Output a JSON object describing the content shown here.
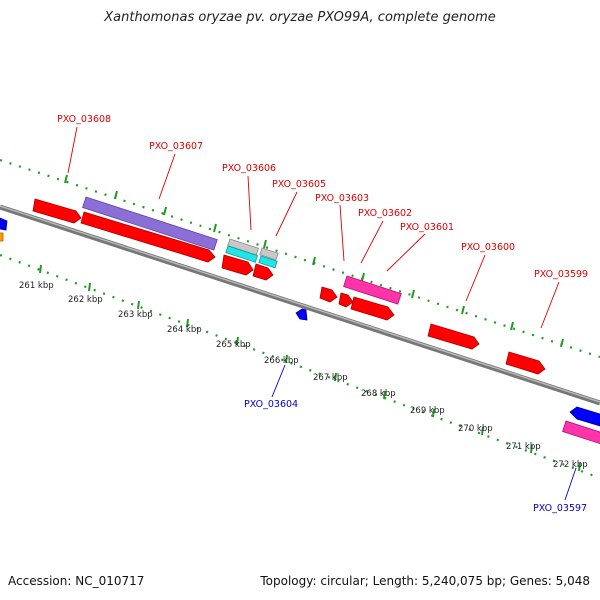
{
  "title": "Xanthomonas oryzae pv. oryzae PXO99A, complete genome",
  "footer": {
    "accession": "Accession: NC_010717",
    "summary": "Topology: circular; Length: 5,240,075 bp; Genes: 5,048"
  },
  "colors": {
    "forward_gene": "#ff0000",
    "reverse_gene": "#0000ff",
    "forward_label": "#dd0000",
    "reverse_label": "#0000cc",
    "cog_purple": "#8c6fd6",
    "cog_pink": "#ff33aa",
    "cog_cyan": "#22e5e5",
    "cog_gray": "#bbbbbb",
    "cog_orange": "#ff9900",
    "ticks": "#229922",
    "backbone": "#888888"
  },
  "scale_labels": [
    "261 kbp",
    "262 kbp",
    "263 kbp",
    "264 kbp",
    "265 kbp",
    "266 kbp",
    "267 kbp",
    "268 kbp",
    "269 kbp",
    "270 kbp",
    "271 kbp",
    "272 kbp"
  ],
  "gene_labels": [
    "PXO_03608",
    "PXO_03607",
    "PXO_03606",
    "PXO_03605",
    "PXO_03603",
    "PXO_03602",
    "PXO_03601",
    "PXO_03600",
    "PXO_03599",
    "PXO_03604",
    "PXO_03597"
  ]
}
